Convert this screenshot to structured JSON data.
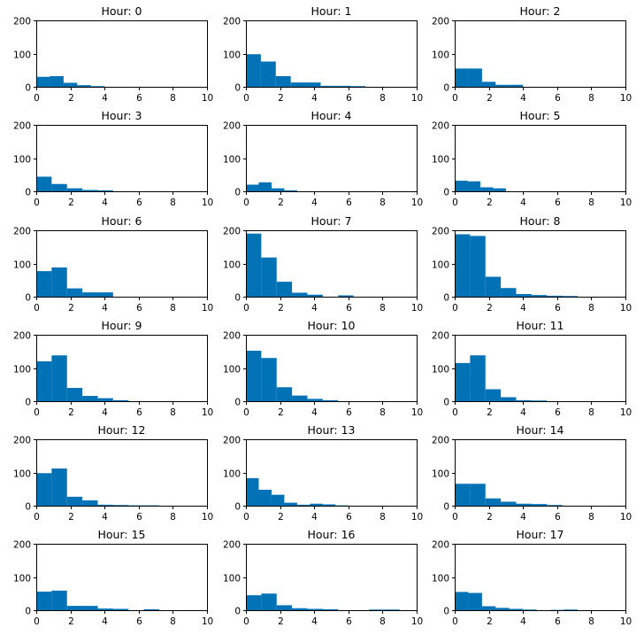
{
  "chart_data": {
    "type": "bar",
    "kind": "histogram-grid",
    "grid": {
      "rows": 6,
      "cols": 3
    },
    "color": "#0172B6",
    "xlim": [
      0,
      10
    ],
    "ylim": [
      0,
      200
    ],
    "xticks": [
      0,
      2,
      4,
      6,
      8,
      10
    ],
    "yticks": [
      0,
      100,
      200
    ],
    "panels": [
      {
        "title": "Hour: 0",
        "bins": [
          [
            0,
            0.8,
            30
          ],
          [
            0.8,
            1.6,
            32
          ],
          [
            1.6,
            2.4,
            12
          ],
          [
            2.4,
            3.2,
            5
          ],
          [
            3.2,
            4.0,
            2
          ]
        ]
      },
      {
        "title": "Hour: 1",
        "bins": [
          [
            0,
            0.875,
            98
          ],
          [
            0.875,
            1.75,
            76
          ],
          [
            1.75,
            2.625,
            32
          ],
          [
            2.625,
            3.5,
            13
          ],
          [
            3.5,
            4.375,
            13
          ],
          [
            4.375,
            5.25,
            3
          ],
          [
            5.25,
            6.125,
            3
          ],
          [
            6.125,
            7.0,
            2
          ]
        ]
      },
      {
        "title": "Hour: 2",
        "bins": [
          [
            0,
            0.8,
            55
          ],
          [
            0.8,
            1.6,
            55
          ],
          [
            1.6,
            2.4,
            15
          ],
          [
            2.4,
            3.2,
            6
          ],
          [
            3.2,
            4.0,
            6
          ]
        ]
      },
      {
        "title": "Hour: 3",
        "bins": [
          [
            0,
            0.9,
            44
          ],
          [
            0.9,
            1.8,
            22
          ],
          [
            1.8,
            2.7,
            9
          ],
          [
            2.7,
            3.6,
            4
          ],
          [
            3.6,
            4.5,
            3
          ]
        ]
      },
      {
        "title": "Hour: 4",
        "bins": [
          [
            0,
            0.75,
            20
          ],
          [
            0.75,
            1.5,
            27
          ],
          [
            1.5,
            2.25,
            9
          ],
          [
            2.25,
            3.0,
            3
          ]
        ]
      },
      {
        "title": "Hour: 5",
        "bins": [
          [
            0,
            0.75,
            32
          ],
          [
            0.75,
            1.5,
            30
          ],
          [
            1.5,
            2.25,
            12
          ],
          [
            2.25,
            3.0,
            9
          ]
        ]
      },
      {
        "title": "Hour: 6",
        "bins": [
          [
            0,
            0.9,
            77
          ],
          [
            0.9,
            1.8,
            88
          ],
          [
            1.8,
            2.7,
            25
          ],
          [
            2.7,
            3.6,
            13
          ],
          [
            3.6,
            4.5,
            13
          ]
        ]
      },
      {
        "title": "Hour: 7",
        "bins": [
          [
            0,
            0.9,
            190
          ],
          [
            0.9,
            1.8,
            118
          ],
          [
            1.8,
            2.7,
            45
          ],
          [
            2.7,
            3.6,
            12
          ],
          [
            3.6,
            4.5,
            6
          ],
          [
            4.5,
            5.4,
            0
          ],
          [
            5.4,
            6.3,
            4
          ]
        ]
      },
      {
        "title": "Hour: 8",
        "bins": [
          [
            0,
            0.9,
            188
          ],
          [
            0.9,
            1.8,
            183
          ],
          [
            1.8,
            2.7,
            60
          ],
          [
            2.7,
            3.6,
            26
          ],
          [
            3.6,
            4.5,
            8
          ],
          [
            4.5,
            5.4,
            5
          ],
          [
            5.4,
            6.3,
            3
          ],
          [
            6.3,
            7.2,
            2
          ]
        ]
      },
      {
        "title": "Hour: 9",
        "bins": [
          [
            0,
            0.9,
            120
          ],
          [
            0.9,
            1.8,
            138
          ],
          [
            1.8,
            2.7,
            40
          ],
          [
            2.7,
            3.6,
            16
          ],
          [
            3.6,
            4.5,
            9
          ],
          [
            4.5,
            5.4,
            3
          ]
        ]
      },
      {
        "title": "Hour: 10",
        "bins": [
          [
            0,
            0.9,
            152
          ],
          [
            0.9,
            1.8,
            130
          ],
          [
            1.8,
            2.7,
            42
          ],
          [
            2.7,
            3.6,
            17
          ],
          [
            3.6,
            4.5,
            7
          ],
          [
            4.5,
            5.4,
            3
          ]
        ]
      },
      {
        "title": "Hour: 11",
        "bins": [
          [
            0,
            0.9,
            115
          ],
          [
            0.9,
            1.8,
            138
          ],
          [
            1.8,
            2.7,
            36
          ],
          [
            2.7,
            3.6,
            12
          ],
          [
            3.6,
            4.5,
            3
          ],
          [
            4.5,
            5.4,
            2
          ]
        ]
      },
      {
        "title": "Hour: 12",
        "bins": [
          [
            0,
            0.9,
            98
          ],
          [
            0.9,
            1.8,
            112
          ],
          [
            1.8,
            2.7,
            27
          ],
          [
            2.7,
            3.6,
            16
          ],
          [
            3.6,
            4.5,
            3
          ],
          [
            4.5,
            5.4,
            2
          ],
          [
            5.4,
            6.3,
            1
          ],
          [
            6.3,
            7.2,
            1
          ]
        ]
      },
      {
        "title": "Hour: 13",
        "bins": [
          [
            0,
            0.75,
            83
          ],
          [
            0.75,
            1.5,
            48
          ],
          [
            1.5,
            2.25,
            33
          ],
          [
            2.25,
            3.0,
            9
          ],
          [
            3.0,
            3.75,
            3
          ],
          [
            3.75,
            4.5,
            6
          ],
          [
            4.5,
            5.25,
            4
          ],
          [
            5.25,
            6.0,
            1
          ]
        ]
      },
      {
        "title": "Hour: 14",
        "bins": [
          [
            0,
            0.9,
            66
          ],
          [
            0.9,
            1.8,
            66
          ],
          [
            1.8,
            2.7,
            22
          ],
          [
            2.7,
            3.6,
            12
          ],
          [
            3.6,
            4.5,
            6
          ],
          [
            4.5,
            5.4,
            5
          ],
          [
            5.4,
            6.3,
            2
          ]
        ]
      },
      {
        "title": "Hour: 15",
        "bins": [
          [
            0,
            0.9,
            56
          ],
          [
            0.9,
            1.8,
            59
          ],
          [
            1.8,
            2.7,
            13
          ],
          [
            2.7,
            3.6,
            13
          ],
          [
            3.6,
            4.5,
            5
          ],
          [
            4.5,
            5.4,
            4
          ],
          [
            5.4,
            6.3,
            0
          ],
          [
            6.3,
            7.2,
            3
          ]
        ]
      },
      {
        "title": "Hour: 16",
        "bins": [
          [
            0,
            0.9,
            45
          ],
          [
            0.9,
            1.8,
            50
          ],
          [
            1.8,
            2.7,
            15
          ],
          [
            2.7,
            3.6,
            6
          ],
          [
            3.6,
            4.5,
            4
          ],
          [
            4.5,
            5.4,
            3
          ],
          [
            5.4,
            6.3,
            0
          ],
          [
            6.3,
            7.2,
            0
          ],
          [
            7.2,
            8.1,
            2
          ],
          [
            8.1,
            9.0,
            2
          ]
        ]
      },
      {
        "title": "Hour: 17",
        "bins": [
          [
            0,
            0.8,
            55
          ],
          [
            0.8,
            1.6,
            52
          ],
          [
            1.6,
            2.4,
            12
          ],
          [
            2.4,
            3.2,
            7
          ],
          [
            3.2,
            4.0,
            4
          ],
          [
            4.0,
            4.8,
            2
          ],
          [
            4.8,
            5.6,
            0
          ],
          [
            5.6,
            6.4,
            1
          ],
          [
            6.4,
            7.2,
            2
          ]
        ]
      }
    ]
  }
}
